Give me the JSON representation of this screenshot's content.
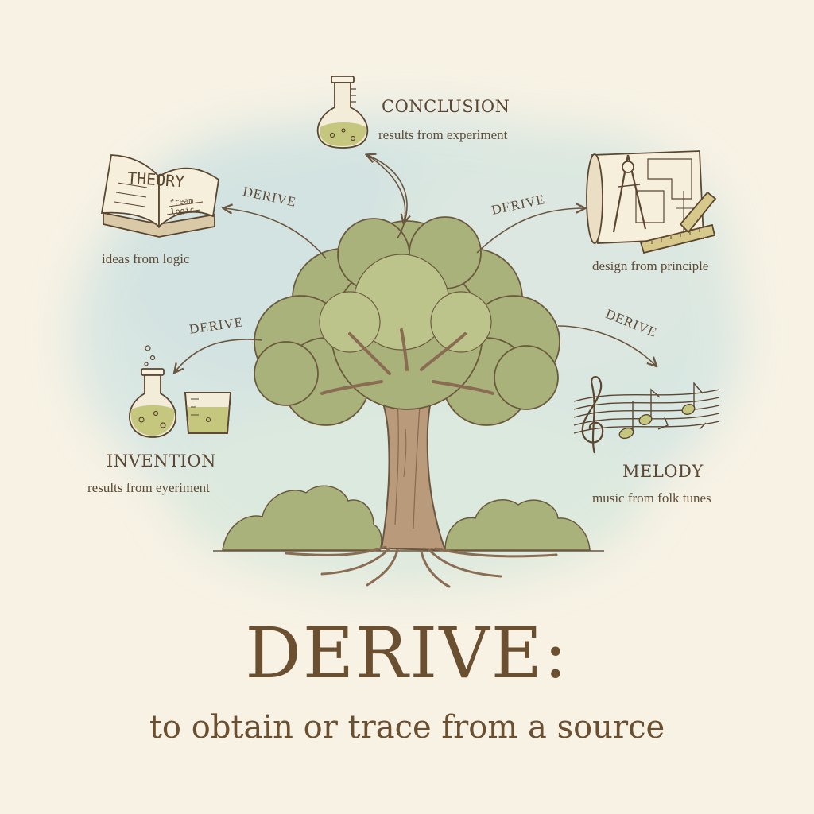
{
  "nodes": {
    "conclusion": {
      "title": "CONCLUSION",
      "subtitle": "results from experiment"
    },
    "theory": {
      "book_text": "THEORY",
      "book_small": "fream logic",
      "subtitle": "ideas from logic"
    },
    "design": {
      "subtitle": "design from principle"
    },
    "invention": {
      "title": "INVENTION",
      "subtitle": "results from eyeriment"
    },
    "melody": {
      "title": "MELODY",
      "subtitle": "music from folk tunes"
    }
  },
  "arrows": {
    "theory_label": "DERIVE",
    "design_label": "DERIVE",
    "invention_label": "DERIVE",
    "melody_label": "DERIVE"
  },
  "heading": {
    "word": "DERIVE:",
    "definition": "to obtain or trace from a source"
  },
  "colors": {
    "background": "#f7f2e4",
    "wash": "#cfe3e2",
    "foliage": "#a9b27a",
    "trunk": "#b99b7c",
    "ink": "#5b4630",
    "liquid": "#c6c77f"
  }
}
